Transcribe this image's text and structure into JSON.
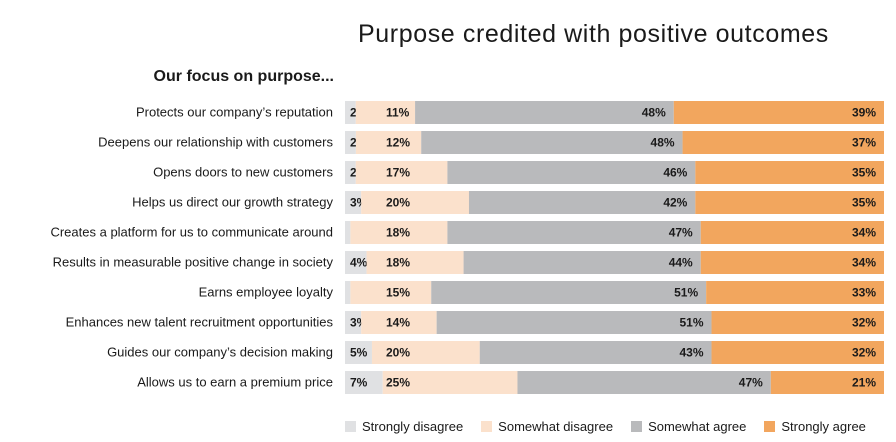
{
  "chart_data": {
    "type": "bar",
    "orientation": "horizontal",
    "stacked": true,
    "normalized": true,
    "title": "Purpose credited with positive outcomes",
    "subtitle": "Our focus on purpose...",
    "categories": [
      "Protects our company’s reputation",
      "Deepens our relationship with customers",
      "Opens doors to new customers",
      "Helps us direct our growth strategy",
      "Creates a platform for us to communicate around",
      "Results in measurable positive change in society",
      "Earns employee loyalty",
      "Enhances new talent recruitment opportunities",
      "Guides our company’s decision making",
      "Allows us to earn a premium price"
    ],
    "series": [
      {
        "name": "Strongly disagree",
        "color": "#e0e1e3",
        "values": [
          2,
          2,
          2,
          3,
          1,
          4,
          1,
          3,
          5,
          7
        ]
      },
      {
        "name": "Somewhat disagree",
        "color": "#fbe1cc",
        "values": [
          11,
          12,
          17,
          20,
          18,
          18,
          15,
          14,
          20,
          25
        ]
      },
      {
        "name": "Somewhat agree",
        "color": "#b9babc",
        "values": [
          48,
          48,
          46,
          42,
          47,
          44,
          51,
          51,
          43,
          47
        ]
      },
      {
        "name": "Strongly agree",
        "color": "#f2a65e",
        "values": [
          39,
          37,
          35,
          35,
          34,
          34,
          33,
          32,
          32,
          21
        ]
      }
    ],
    "value_suffix": "%",
    "legend_position": "bottom"
  }
}
